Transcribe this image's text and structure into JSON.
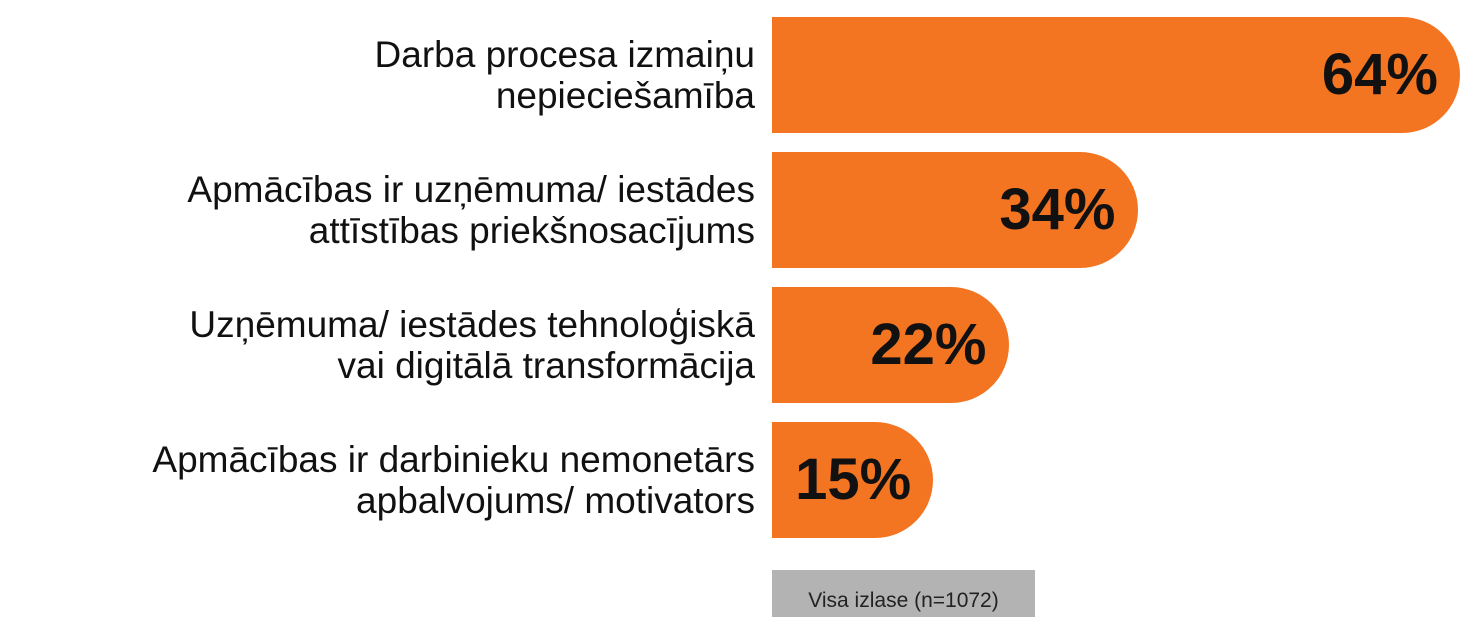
{
  "chart_data": {
    "type": "bar",
    "orientation": "horizontal",
    "categories": [
      "Darba procesa izmaiņu\nnepieciešamība",
      "Apmācības ir uzņēmuma/ iestādes\nattīstības priekšnosacījums",
      "Uzņēmuma/ iestādes tehnoloģiskā\nvai digitālā transformācija",
      "Apmācības ir darbinieku nemonetārs\napbalvojums/ motivators"
    ],
    "series": [
      {
        "name": "Visa izlase (n=1072)",
        "color": "#f37521",
        "values": [
          64,
          34,
          22,
          15
        ],
        "value_labels": [
          "64%",
          "34%",
          "22%",
          "15%"
        ]
      }
    ],
    "legend_color": "#b3b3b3"
  }
}
